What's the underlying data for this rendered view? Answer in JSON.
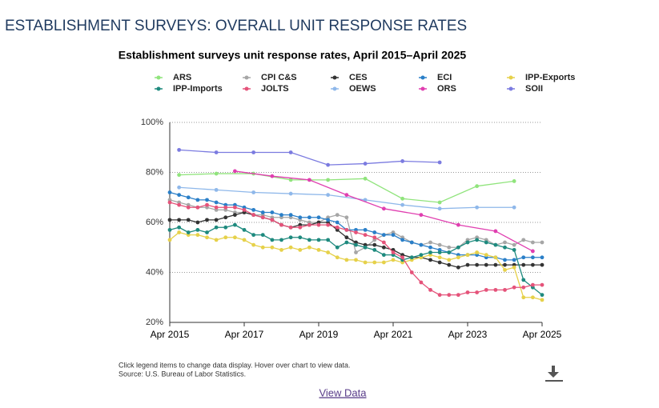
{
  "page_title": "ESTABLISHMENT SURVEYS: OVERALL UNIT RESPONSE RATES",
  "chart_data": {
    "type": "line",
    "title": "Establishment surveys unit response rates, April 2015–April 2025",
    "x": [
      "2015-04",
      "2015-07",
      "2015-10",
      "2016-01",
      "2016-04",
      "2016-07",
      "2016-10",
      "2017-01",
      "2017-04",
      "2017-07",
      "2017-10",
      "2018-01",
      "2018-04",
      "2018-07",
      "2018-10",
      "2019-01",
      "2019-04",
      "2019-07",
      "2019-10",
      "2020-01",
      "2020-04",
      "2020-07",
      "2020-10",
      "2021-01",
      "2021-04",
      "2021-07",
      "2021-10",
      "2022-01",
      "2022-04",
      "2022-07",
      "2022-10",
      "2023-01",
      "2023-04",
      "2023-07",
      "2023-10",
      "2024-01",
      "2024-04",
      "2024-07",
      "2024-10",
      "2025-01",
      "2025-04"
    ],
    "series": [
      {
        "name": "ARS",
        "color": "#90e47c",
        "x": [
          "2015-07",
          "2016-07",
          "2017-07",
          "2018-07",
          "2019-07",
          "2020-07",
          "2021-07",
          "2022-07",
          "2023-07",
          "2024-07"
        ],
        "values": [
          79,
          79.5,
          79.5,
          77,
          77,
          77.5,
          69.5,
          68,
          74.5,
          76.5
        ]
      },
      {
        "name": "CPI C&S",
        "color": "#a6a6a6",
        "values": [
          69,
          68,
          67,
          66,
          66,
          65,
          65,
          64,
          64,
          63,
          63,
          62,
          62,
          62,
          61,
          60,
          60,
          62,
          63,
          62,
          48,
          50,
          53,
          55,
          56,
          54,
          52,
          51,
          52,
          51,
          50,
          50,
          53,
          54,
          53,
          51,
          52,
          51,
          53,
          52,
          52
        ]
      },
      {
        "name": "CES",
        "color": "#333333",
        "values": [
          61,
          61,
          61,
          60,
          61,
          61,
          62,
          63,
          64,
          63,
          62,
          61,
          59,
          58,
          59,
          59,
          60,
          60,
          57,
          54,
          52,
          51,
          51,
          50,
          49,
          47,
          46,
          46,
          45,
          44,
          43,
          42,
          43,
          43,
          43,
          43,
          43,
          43,
          43,
          43,
          43
        ]
      },
      {
        "name": "ECI",
        "color": "#2a7fc8",
        "values": [
          72,
          71,
          70,
          69,
          69,
          68,
          67,
          67,
          66,
          65,
          64,
          64,
          63,
          63,
          62,
          62,
          62,
          61,
          60,
          57,
          57,
          57,
          56,
          55,
          55,
          53,
          52,
          51,
          50,
          49,
          48,
          47,
          47,
          47,
          46,
          46,
          45,
          45,
          46,
          46,
          46
        ]
      },
      {
        "name": "IPP-Exports",
        "color": "#e6d14a",
        "values": [
          53,
          56,
          55,
          55,
          54,
          53,
          54,
          54,
          53,
          51,
          50,
          50,
          49,
          50,
          49,
          50,
          49,
          48,
          46,
          45,
          45,
          44,
          44,
          44,
          45,
          44,
          45,
          46,
          47,
          46,
          45,
          46,
          47,
          48,
          47,
          46,
          41,
          42,
          30,
          30,
          29
        ]
      },
      {
        "name": "IPP-Imports",
        "color": "#1e8a7e",
        "values": [
          57,
          58,
          56,
          57,
          56,
          58,
          58,
          59,
          57,
          55,
          55,
          53,
          53,
          54,
          54,
          53,
          53,
          53,
          50,
          52,
          51,
          50,
          49,
          47,
          47,
          45,
          46,
          47,
          48,
          48,
          48,
          50,
          52,
          53,
          52,
          51,
          50,
          49,
          37,
          34,
          31
        ]
      },
      {
        "name": "JOLTS",
        "color": "#e5537a",
        "values": [
          68,
          67,
          66,
          66,
          67,
          66,
          66,
          66,
          65,
          63,
          62,
          61,
          59,
          58,
          58,
          59,
          59,
          59,
          58,
          57,
          56,
          55,
          54,
          52,
          48,
          46,
          40,
          36,
          33,
          31,
          31,
          31,
          32,
          32,
          33,
          33,
          33,
          34,
          34,
          35,
          35
        ]
      },
      {
        "name": "OEWS",
        "color": "#8fb8ea",
        "x": [
          "2015-07",
          "2016-07",
          "2017-07",
          "2018-07",
          "2019-07",
          "2020-07",
          "2021-07",
          "2022-07",
          "2023-07",
          "2024-07"
        ],
        "values": [
          74,
          73,
          72,
          71.5,
          71,
          69,
          67,
          65.5,
          66,
          66
        ]
      },
      {
        "name": "ORS",
        "color": "#e03fb0",
        "x": [
          "2017-01",
          "2018-01",
          "2019-01",
          "2020-01",
          "2021-01",
          "2022-01",
          "2023-01",
          "2024-01",
          "2025-01"
        ],
        "values": [
          80.5,
          78.5,
          77,
          71,
          65.5,
          63,
          59,
          56.5,
          48.5
        ]
      },
      {
        "name": "SOII",
        "color": "#7b7be0",
        "x": [
          "2015-07",
          "2016-07",
          "2017-07",
          "2018-07",
          "2019-07",
          "2020-07",
          "2021-07",
          "2022-07"
        ],
        "values": [
          89,
          88,
          88,
          88,
          83,
          83.5,
          84.5,
          84
        ]
      }
    ],
    "xlim": [
      "2015-04",
      "2025-04"
    ],
    "xticks": [
      {
        "value": "2015-04",
        "label": "Apr 2015"
      },
      {
        "value": "2017-04",
        "label": "Apr 2017"
      },
      {
        "value": "2019-04",
        "label": "Apr 2019"
      },
      {
        "value": "2021-04",
        "label": "Apr 2021"
      },
      {
        "value": "2023-04",
        "label": "Apr 2023"
      },
      {
        "value": "2025-04",
        "label": "Apr 2025"
      }
    ],
    "ylim": [
      20,
      100
    ],
    "yticks": [
      {
        "value": 20,
        "label": "20%"
      },
      {
        "value": 40,
        "label": "40%"
      },
      {
        "value": 60,
        "label": "60%"
      },
      {
        "value": 80,
        "label": "80%"
      },
      {
        "value": 100,
        "label": "100%"
      }
    ],
    "grid": true
  },
  "notes": [
    "Click legend items to change data display. Hover over chart to view data.",
    "Source: U.S. Bureau of Labor Statistics."
  ],
  "link": "View Data"
}
